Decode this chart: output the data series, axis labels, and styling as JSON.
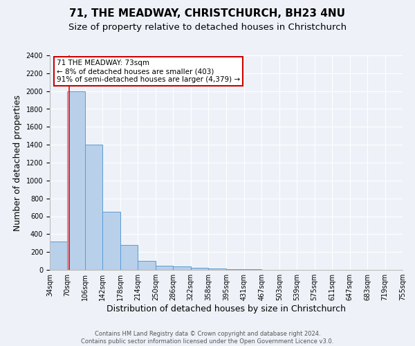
{
  "title": "71, THE MEADWAY, CHRISTCHURCH, BH23 4NU",
  "subtitle": "Size of property relative to detached houses in Christchurch",
  "xlabel": "Distribution of detached houses by size in Christchurch",
  "ylabel": "Number of detached properties",
  "footer_line1": "Contains HM Land Registry data © Crown copyright and database right 2024.",
  "footer_line2": "Contains public sector information licensed under the Open Government Licence v3.0.",
  "bin_edges": [
    34,
    70,
    106,
    142,
    178,
    214,
    250,
    286,
    322,
    358,
    395,
    431,
    467,
    503,
    539,
    575,
    611,
    647,
    683,
    719,
    755
  ],
  "bar_heights": [
    320,
    2000,
    1400,
    650,
    275,
    100,
    45,
    35,
    25,
    15,
    8,
    5,
    3,
    2,
    2,
    1,
    1,
    1,
    1,
    1
  ],
  "bar_color": "#b8d0ea",
  "bar_edge_color": "#5b9bd5",
  "red_line_x": 73,
  "ylim": [
    0,
    2400
  ],
  "yticks": [
    0,
    200,
    400,
    600,
    800,
    1000,
    1200,
    1400,
    1600,
    1800,
    2000,
    2200,
    2400
  ],
  "annotation_text": "71 THE MEADWAY: 73sqm\n← 8% of detached houses are smaller (403)\n91% of semi-detached houses are larger (4,379) →",
  "annotation_box_color": "#ffffff",
  "annotation_border_color": "#cc0000",
  "background_color": "#eef2f8",
  "grid_color": "#ffffff",
  "title_fontsize": 11,
  "subtitle_fontsize": 9.5,
  "tick_label_fontsize": 7,
  "ylabel_fontsize": 9,
  "xlabel_fontsize": 9,
  "annotation_fontsize": 7.5,
  "footer_fontsize": 6
}
